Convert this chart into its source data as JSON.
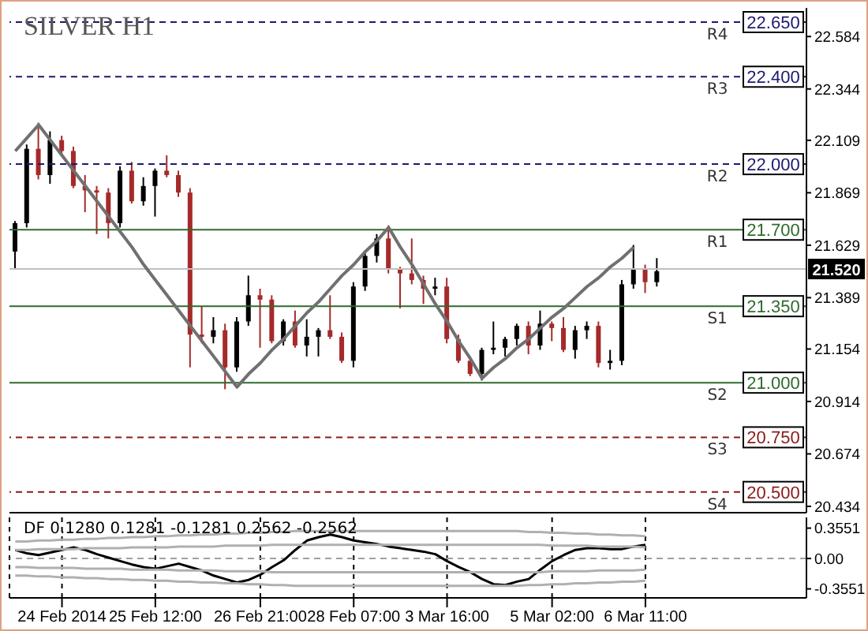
{
  "chart_data": [
    {
      "type": "candlestick",
      "title": "SILVER H1",
      "categories": [
        null,
        null,
        null,
        null,
        null,
        null,
        null,
        null,
        null,
        null,
        null,
        null,
        null,
        null,
        null,
        null,
        null,
        null,
        null,
        null,
        null,
        null,
        null,
        null,
        null,
        null,
        null,
        null,
        null,
        null,
        null,
        null,
        null,
        null,
        null,
        null,
        null,
        null,
        null,
        null,
        null,
        null,
        null,
        null,
        null,
        null,
        null,
        null,
        null,
        null,
        null,
        null,
        null,
        null,
        null,
        null
      ],
      "ohlc": [
        [
          21.6,
          21.74,
          21.52,
          21.73
        ],
        [
          21.73,
          22.09,
          21.71,
          22.07
        ],
        [
          22.07,
          22.19,
          21.93,
          21.95
        ],
        [
          21.95,
          22.15,
          21.91,
          22.11
        ],
        [
          22.11,
          22.13,
          22.04,
          22.06
        ],
        [
          22.06,
          22.08,
          21.89,
          21.9
        ],
        [
          21.9,
          21.95,
          21.78,
          21.88
        ],
        [
          21.88,
          21.9,
          21.68,
          21.87
        ],
        [
          21.87,
          21.89,
          21.66,
          21.73
        ],
        [
          21.73,
          21.99,
          21.71,
          21.97
        ],
        [
          21.97,
          22.01,
          21.82,
          21.83
        ],
        [
          21.83,
          21.94,
          21.81,
          21.9
        ],
        [
          21.9,
          21.98,
          21.76,
          21.97
        ],
        [
          21.97,
          22.04,
          21.94,
          21.95
        ],
        [
          21.95,
          21.97,
          21.85,
          21.87
        ],
        [
          21.87,
          21.89,
          21.07,
          21.22
        ],
        [
          21.22,
          21.35,
          21.18,
          21.21
        ],
        [
          21.21,
          21.3,
          21.18,
          21.24
        ],
        [
          21.24,
          21.27,
          20.97,
          21.07
        ],
        [
          21.07,
          21.3,
          21.05,
          21.28
        ],
        [
          21.28,
          21.49,
          21.26,
          21.4
        ],
        [
          21.4,
          21.43,
          21.16,
          21.38
        ],
        [
          21.38,
          21.4,
          21.18,
          21.19
        ],
        [
          21.19,
          21.29,
          21.17,
          21.28
        ],
        [
          21.28,
          21.33,
          21.16,
          21.17
        ],
        [
          21.17,
          21.29,
          21.12,
          21.21
        ],
        [
          21.21,
          21.25,
          21.12,
          21.24
        ],
        [
          21.24,
          21.4,
          21.2,
          21.21
        ],
        [
          21.21,
          21.23,
          21.09,
          21.1
        ],
        [
          21.1,
          21.46,
          21.07,
          21.44
        ],
        [
          21.44,
          21.6,
          21.42,
          21.58
        ],
        [
          21.58,
          21.68,
          21.55,
          21.66
        ],
        [
          21.66,
          21.72,
          21.5,
          21.52
        ],
        [
          21.52,
          21.53,
          21.34,
          21.5
        ],
        [
          21.5,
          21.66,
          21.45,
          21.47
        ],
        [
          21.47,
          21.49,
          21.36,
          21.43
        ],
        [
          21.43,
          21.48,
          21.4,
          21.44
        ],
        [
          21.44,
          21.48,
          21.18,
          21.2
        ],
        [
          21.2,
          21.22,
          21.09,
          21.1
        ],
        [
          21.1,
          21.12,
          21.03,
          21.04
        ],
        [
          21.04,
          21.16,
          21.01,
          21.15
        ],
        [
          21.15,
          21.28,
          21.13,
          21.16
        ],
        [
          21.16,
          21.21,
          21.12,
          21.2
        ],
        [
          21.2,
          21.27,
          21.17,
          21.26
        ],
        [
          21.26,
          21.28,
          21.13,
          21.17
        ],
        [
          21.17,
          21.33,
          21.15,
          21.27
        ],
        [
          21.27,
          21.28,
          21.19,
          21.25
        ],
        [
          21.25,
          21.3,
          21.14,
          21.15
        ],
        [
          21.15,
          21.26,
          21.11,
          21.24
        ],
        [
          21.24,
          21.28,
          21.2,
          21.26
        ],
        [
          21.26,
          21.28,
          21.07,
          21.09
        ],
        [
          21.09,
          21.15,
          21.06,
          21.1
        ],
        [
          21.1,
          21.47,
          21.08,
          21.45
        ],
        [
          21.45,
          21.63,
          21.43,
          21.52
        ],
        [
          21.52,
          21.54,
          21.41,
          21.46
        ],
        [
          21.46,
          21.57,
          21.44,
          21.51
        ]
      ],
      "colors": [
        "#000000",
        "#000000",
        "#a52a2a",
        "#000000",
        "#a52a2a",
        "#a52a2a",
        "#a52a2a",
        "#a52a2a",
        "#a52a2a",
        "#000000",
        "#a52a2a",
        "#000000",
        "#000000",
        "#a52a2a",
        "#a52a2a",
        "#a52a2a",
        "#a52a2a",
        "#000000",
        "#a52a2a",
        "#000000",
        "#000000",
        "#a52a2a",
        "#a52a2a",
        "#000000",
        "#a52a2a",
        "#000000",
        "#000000",
        "#a52a2a",
        "#a52a2a",
        "#000000",
        "#000000",
        "#000000",
        "#a52a2a",
        "#a52a2a",
        "#a52a2a",
        "#a52a2a",
        "#000000",
        "#a52a2a",
        "#a52a2a",
        "#a52a2a",
        "#000000",
        "#000000",
        "#000000",
        "#000000",
        "#a52a2a",
        "#000000",
        "#a52a2a",
        "#a52a2a",
        "#000000",
        "#000000",
        "#a52a2a",
        "#000000",
        "#000000",
        "#000000",
        "#a52a2a",
        "#000000"
      ],
      "annotations": [
        {
          "text": "R4",
          "y": 22.65
        },
        {
          "text": "R3",
          "y": 22.4
        },
        {
          "text": "R2",
          "y": 22.0
        },
        {
          "text": "R1",
          "y": 21.7
        },
        {
          "text": "S1",
          "y": 21.35
        },
        {
          "text": "S2",
          "y": 21.0
        },
        {
          "text": "S3",
          "y": 20.75
        },
        {
          "text": "S4",
          "y": 20.5
        }
      ],
      "series": [
        {
          "type": "line",
          "color": "#707070",
          "values": [
            22.06,
            22.12,
            22.18,
            22.11,
            22.04,
            21.97,
            21.9,
            21.83,
            21.76,
            21.69,
            21.62,
            21.54,
            21.47,
            21.4,
            21.33,
            21.26,
            21.19,
            21.12,
            21.05,
            20.98,
            21.04,
            21.09,
            21.15,
            21.2,
            21.26,
            21.32,
            21.37,
            21.43,
            21.49,
            21.54,
            21.6,
            21.65,
            21.71,
            21.62,
            21.54,
            21.45,
            21.36,
            21.28,
            21.19,
            21.11,
            21.02,
            21.07,
            21.11,
            21.16,
            21.2,
            21.25,
            21.3,
            21.34,
            21.39,
            21.44,
            21.48,
            21.53,
            21.57,
            21.62,
            null,
            null
          ]
        }
      ],
      "ylim": [
        20.405,
        22.715
      ],
      "yticks": [
        22.584,
        22.344,
        22.109,
        21.869,
        21.629,
        21.389,
        21.154,
        20.914,
        20.674,
        20.434
      ],
      "tick_labels": "y",
      "ref_lines": [
        {
          "axis": "y",
          "value": 22.65,
          "label": "22.650",
          "color": "#1a1a6e",
          "line_style": "dashed"
        },
        {
          "axis": "y",
          "value": 22.4,
          "label": "22.400",
          "color": "#1a1a6e",
          "line_style": "dashed"
        },
        {
          "axis": "y",
          "value": 22.0,
          "label": "22.000",
          "color": "#1a1a6e",
          "line_style": "dashed"
        },
        {
          "axis": "y",
          "value": 21.7,
          "label": "21.700",
          "color": "#2e6b2e",
          "line_style": "solid"
        },
        {
          "axis": "y",
          "value": 21.35,
          "label": "21.350",
          "color": "#2e6b2e",
          "line_style": "solid"
        },
        {
          "axis": "y",
          "value": 21.0,
          "label": "21.000",
          "color": "#2e6b2e",
          "line_style": "solid"
        },
        {
          "axis": "y",
          "value": 20.75,
          "label": "20.750",
          "color": "#8b1a1a",
          "line_style": "dashed"
        },
        {
          "axis": "y",
          "value": 20.5,
          "label": "20.500",
          "color": "#8b1a1a",
          "line_style": "dashed"
        },
        {
          "axis": "y",
          "value": 21.52,
          "label": "21.520",
          "color": "#c0c0c0",
          "line_style": "solid"
        }
      ]
    },
    {
      "type": "line",
      "title": "DF 0.1280 0.1281 -0.1281 0.2562 -0.2562",
      "categories": [
        null,
        null,
        null,
        null,
        "24 Feb 2014",
        null,
        null,
        null,
        null,
        null,
        null,
        null,
        "25 Feb 12:00",
        null,
        null,
        null,
        null,
        null,
        null,
        null,
        null,
        "26 Feb 21:00",
        null,
        null,
        null,
        null,
        null,
        null,
        null,
        "28 Feb 07:00",
        null,
        null,
        null,
        null,
        null,
        null,
        null,
        "3 Mar 16:00",
        null,
        null,
        null,
        null,
        null,
        null,
        null,
        null,
        "5 Mar 02:00",
        null,
        null,
        null,
        null,
        null,
        null,
        null,
        "6 Mar 11:00",
        null
      ],
      "series": [
        {
          "color": "#000000",
          "values": [
            0.1,
            0.06,
            0.04,
            0.07,
            0.1,
            0.13,
            0.1,
            0.05,
            0.01,
            -0.03,
            -0.07,
            -0.1,
            -0.12,
            -0.09,
            -0.06,
            -0.1,
            -0.14,
            -0.2,
            -0.24,
            -0.28,
            -0.25,
            -0.19,
            -0.1,
            -0.02,
            0.1,
            0.21,
            0.25,
            0.28,
            0.25,
            0.21,
            0.19,
            0.17,
            0.14,
            0.12,
            0.1,
            0.08,
            0.05,
            -0.03,
            -0.1,
            -0.16,
            -0.24,
            -0.3,
            -0.31,
            -0.27,
            -0.24,
            -0.13,
            -0.03,
            0.04,
            0.1,
            0.12,
            0.12,
            0.11,
            0.11,
            0.14,
            0.16,
            null
          ]
        },
        {
          "color": "#b0b0b0",
          "values": [
            0.2,
            0.2,
            0.21,
            0.21,
            0.22,
            0.22,
            0.23,
            0.23,
            0.24,
            0.24,
            0.25,
            0.25,
            0.26,
            0.26,
            0.27,
            0.27,
            0.28,
            0.28,
            0.29,
            0.29,
            0.3,
            0.3,
            0.31,
            0.31,
            0.32,
            0.32,
            0.32,
            0.32,
            0.32,
            0.32,
            0.32,
            0.32,
            0.32,
            0.32,
            0.32,
            0.32,
            0.32,
            0.32,
            0.32,
            0.32,
            0.32,
            0.32,
            0.32,
            0.32,
            0.31,
            0.31,
            0.3,
            0.3,
            0.29,
            0.29,
            0.28,
            0.28,
            0.27,
            0.27,
            0.26,
            null
          ]
        },
        {
          "color": "#b0b0b0",
          "values": [
            0.1,
            0.1,
            0.11,
            0.11,
            0.11,
            0.11,
            0.12,
            0.12,
            0.12,
            0.12,
            0.13,
            0.13,
            0.13,
            0.13,
            0.14,
            0.14,
            0.14,
            0.14,
            0.15,
            0.15,
            0.15,
            0.15,
            0.16,
            0.16,
            0.16,
            0.16,
            0.16,
            0.16,
            0.16,
            0.16,
            0.16,
            0.16,
            0.16,
            0.16,
            0.16,
            0.16,
            0.16,
            0.16,
            0.16,
            0.16,
            0.16,
            0.16,
            0.16,
            0.16,
            0.16,
            0.16,
            0.15,
            0.15,
            0.15,
            0.15,
            0.14,
            0.14,
            0.14,
            0.14,
            0.13,
            null
          ]
        },
        {
          "color": "#b0b0b0",
          "values": [
            -0.1,
            -0.1,
            -0.11,
            -0.11,
            -0.11,
            -0.11,
            -0.12,
            -0.12,
            -0.12,
            -0.12,
            -0.13,
            -0.13,
            -0.13,
            -0.13,
            -0.14,
            -0.14,
            -0.14,
            -0.14,
            -0.15,
            -0.15,
            -0.15,
            -0.15,
            -0.16,
            -0.16,
            -0.16,
            -0.16,
            -0.16,
            -0.16,
            -0.16,
            -0.16,
            -0.16,
            -0.16,
            -0.16,
            -0.16,
            -0.16,
            -0.16,
            -0.16,
            -0.16,
            -0.16,
            -0.16,
            -0.16,
            -0.16,
            -0.16,
            -0.16,
            -0.16,
            -0.16,
            -0.15,
            -0.15,
            -0.15,
            -0.15,
            -0.14,
            -0.14,
            -0.14,
            -0.14,
            -0.13,
            null
          ]
        },
        {
          "color": "#b0b0b0",
          "values": [
            -0.2,
            -0.2,
            -0.21,
            -0.21,
            -0.22,
            -0.22,
            -0.23,
            -0.23,
            -0.24,
            -0.24,
            -0.25,
            -0.25,
            -0.26,
            -0.26,
            -0.27,
            -0.27,
            -0.28,
            -0.28,
            -0.29,
            -0.29,
            -0.3,
            -0.3,
            -0.31,
            -0.31,
            -0.32,
            -0.32,
            -0.32,
            -0.32,
            -0.32,
            -0.32,
            -0.32,
            -0.32,
            -0.32,
            -0.32,
            -0.32,
            -0.32,
            -0.32,
            -0.32,
            -0.32,
            -0.32,
            -0.32,
            -0.32,
            -0.32,
            -0.32,
            -0.31,
            -0.31,
            -0.3,
            -0.3,
            -0.29,
            -0.29,
            -0.28,
            -0.28,
            -0.27,
            -0.27,
            -0.26,
            null
          ]
        }
      ],
      "ylim": [
        -0.46,
        0.48
      ],
      "yticks": [
        0.3551,
        {
          "value": 0,
          "label": "0.00"
        },
        -0.3551
      ],
      "grid": "x",
      "ref_lines": [
        {
          "axis": "y",
          "value": 0,
          "color": "#a0a0a0",
          "line_style": "dashed"
        }
      ]
    }
  ]
}
